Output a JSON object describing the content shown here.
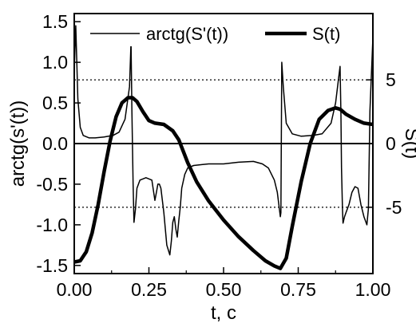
{
  "chart_data": {
    "type": "line",
    "title": "",
    "xlabel": "t, c",
    "ylabel_left": "arctg(s'(t))",
    "ylabel_right": "S(t)",
    "xlim": [
      0,
      1
    ],
    "ylim_left": [
      -1.6,
      1.6
    ],
    "ylim_right": [
      -10.2,
      10.2
    ],
    "x_ticks": [
      {
        "value": 0,
        "label": "0.00"
      },
      {
        "value": 0.25,
        "label": "0.25"
      },
      {
        "value": 0.5,
        "label": "0.50"
      },
      {
        "value": 0.75,
        "label": "0.75"
      },
      {
        "value": 1,
        "label": "1.00"
      }
    ],
    "y_left_ticks": [
      {
        "value": 1.5,
        "label": "1.5"
      },
      {
        "value": 1.0,
        "label": "1.0"
      },
      {
        "value": 0.5,
        "label": "0.5"
      },
      {
        "value": 0.0,
        "label": "0.0"
      },
      {
        "value": -0.5,
        "label": "-0.5"
      },
      {
        "value": -1.0,
        "label": "-1.0"
      },
      {
        "value": -1.5,
        "label": "-1.5"
      }
    ],
    "y_right_ticks": [
      {
        "value": 5,
        "label": "5"
      },
      {
        "value": 0,
        "label": "0"
      },
      {
        "value": -5,
        "label": "-5"
      }
    ],
    "reference_lines": [
      {
        "axis": "right",
        "value": 5,
        "style": "dotted"
      },
      {
        "axis": "right",
        "value": -5,
        "style": "dotted"
      },
      {
        "axis": "left",
        "value": 0,
        "style": "solid"
      }
    ],
    "legend_position": "top",
    "series": [
      {
        "name": "arctg(S'(t))",
        "axis": "left",
        "line": "thin",
        "color": "#000000",
        "x": [
          0.0,
          0.005,
          0.012,
          0.02,
          0.03,
          0.05,
          0.07,
          0.1,
          0.13,
          0.15,
          0.17,
          0.185,
          0.19,
          0.193,
          0.197,
          0.2,
          0.205,
          0.21,
          0.22,
          0.24,
          0.26,
          0.27,
          0.275,
          0.28,
          0.285,
          0.29,
          0.3,
          0.31,
          0.32,
          0.325,
          0.33,
          0.335,
          0.34,
          0.345,
          0.35,
          0.355,
          0.36,
          0.37,
          0.38,
          0.4,
          0.45,
          0.5,
          0.55,
          0.6,
          0.63,
          0.65,
          0.67,
          0.68,
          0.685,
          0.69,
          0.692,
          0.695,
          0.7,
          0.71,
          0.73,
          0.76,
          0.8,
          0.83,
          0.86,
          0.875,
          0.885,
          0.89,
          0.893,
          0.895,
          0.898,
          0.9,
          0.905,
          0.91,
          0.92,
          0.93,
          0.94,
          0.95,
          0.96,
          0.97,
          0.98,
          0.985,
          0.99,
          1.0
        ],
        "y": [
          0.9,
          1.45,
          0.55,
          0.2,
          0.1,
          0.07,
          0.07,
          0.08,
          0.1,
          0.14,
          0.3,
          0.7,
          1.25,
          0.4,
          -0.5,
          -0.97,
          -0.8,
          -0.55,
          -0.45,
          -0.42,
          -0.45,
          -0.7,
          -0.6,
          -0.5,
          -0.5,
          -0.55,
          -0.85,
          -1.25,
          -1.37,
          -1.2,
          -0.97,
          -0.9,
          -1.05,
          -1.15,
          -0.95,
          -0.78,
          -0.55,
          -0.38,
          -0.3,
          -0.27,
          -0.25,
          -0.25,
          -0.23,
          -0.22,
          -0.25,
          -0.3,
          -0.45,
          -0.6,
          -0.75,
          -0.9,
          -0.85,
          1.0,
          0.7,
          0.25,
          0.12,
          0.09,
          0.1,
          0.12,
          0.25,
          0.5,
          0.8,
          0.95,
          0.35,
          -0.3,
          -0.8,
          -0.98,
          -0.9,
          -0.85,
          -0.75,
          -0.6,
          -0.53,
          -0.55,
          -0.75,
          -0.9,
          -1.0,
          -0.8,
          0.4,
          1.3
        ]
      },
      {
        "name": "S(t)",
        "axis": "right",
        "line": "thick",
        "color": "#000000",
        "x": [
          0.0,
          0.02,
          0.04,
          0.06,
          0.08,
          0.1,
          0.12,
          0.14,
          0.16,
          0.18,
          0.195,
          0.21,
          0.23,
          0.25,
          0.27,
          0.3,
          0.33,
          0.35,
          0.38,
          0.41,
          0.45,
          0.5,
          0.55,
          0.6,
          0.64,
          0.67,
          0.69,
          0.71,
          0.73,
          0.76,
          0.79,
          0.82,
          0.85,
          0.875,
          0.89,
          0.91,
          0.94,
          0.97,
          1.0
        ],
        "y": [
          -9.3,
          -9.2,
          -8.5,
          -7.0,
          -4.8,
          -2.2,
          0.2,
          2.1,
          3.2,
          3.6,
          3.6,
          3.3,
          2.5,
          1.8,
          1.6,
          1.5,
          1.0,
          0.3,
          -1.5,
          -3.0,
          -4.5,
          -6.0,
          -7.3,
          -8.4,
          -9.2,
          -9.6,
          -9.8,
          -9.0,
          -6.5,
          -3.0,
          0.0,
          1.9,
          2.6,
          2.8,
          2.7,
          2.3,
          1.9,
          1.6,
          1.5
        ]
      }
    ]
  }
}
